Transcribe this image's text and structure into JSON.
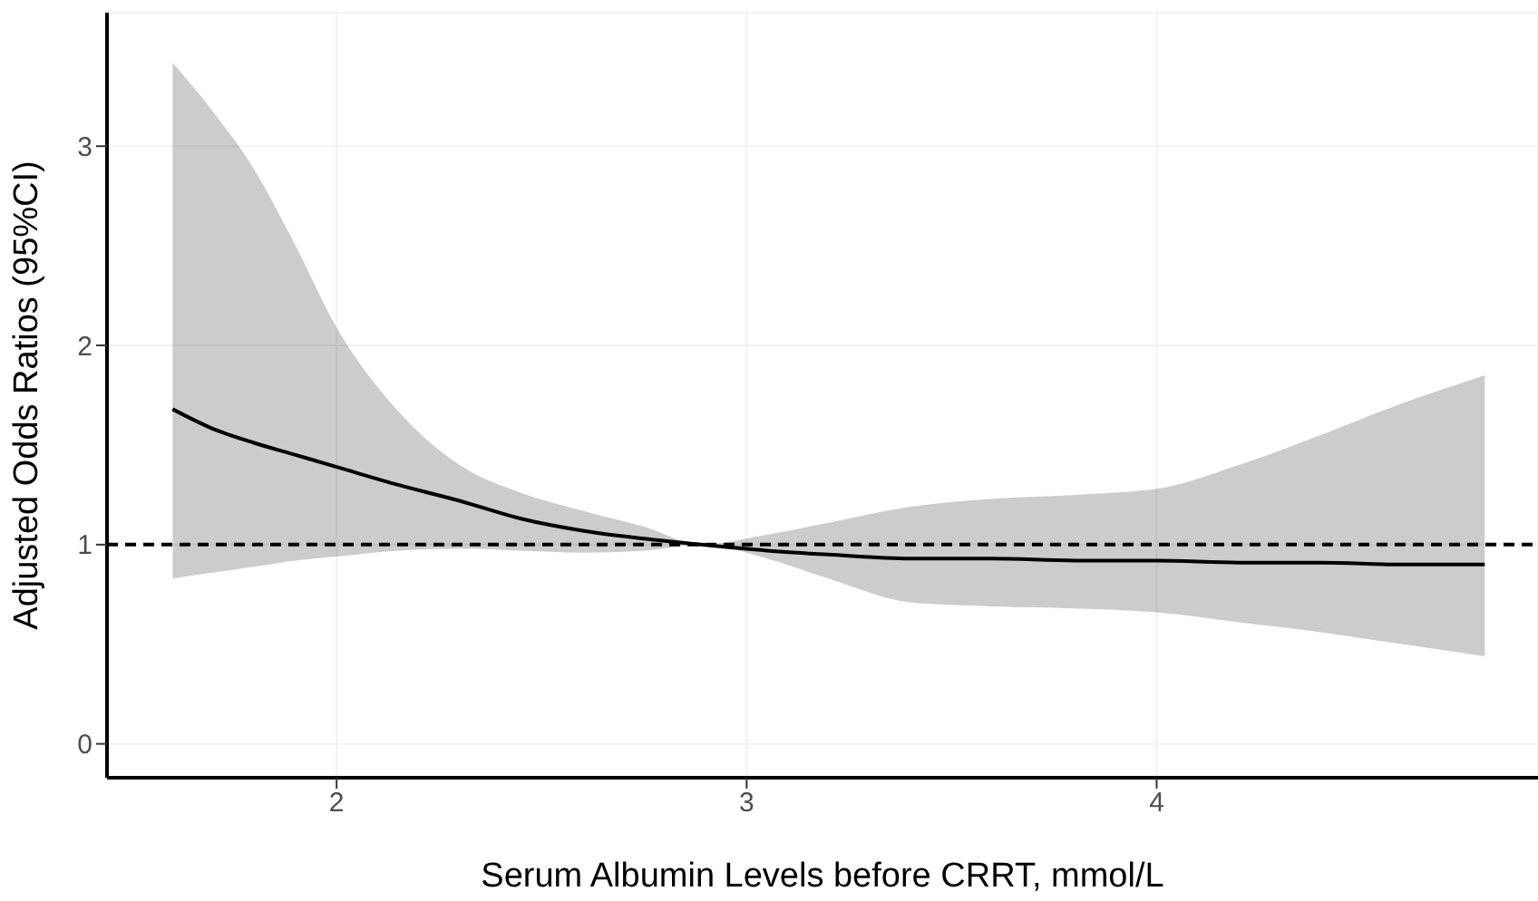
{
  "chart_data": {
    "type": "line",
    "xlabel": "Serum Albumin Levels before CRRT, mmol/L",
    "ylabel": "Adjusted Odds Ratios (95%CI)",
    "x": [
      1.6,
      1.7,
      1.8,
      1.9,
      2.0,
      2.15,
      2.3,
      2.45,
      2.6,
      2.75,
      2.89,
      3.05,
      3.2,
      3.4,
      3.6,
      3.8,
      4.0,
      4.2,
      4.4,
      4.6,
      4.8
    ],
    "series": [
      {
        "color": "#000000",
        "values": [
          1.68,
          1.58,
          1.51,
          1.45,
          1.39,
          1.3,
          1.22,
          1.13,
          1.07,
          1.03,
          1.0,
          0.97,
          0.95,
          0.93,
          0.93,
          0.92,
          0.92,
          0.91,
          0.91,
          0.9,
          0.9
        ],
        "lower": [
          0.83,
          0.86,
          0.89,
          0.92,
          0.94,
          0.97,
          0.98,
          0.97,
          0.96,
          0.97,
          1.0,
          0.93,
          0.83,
          0.71,
          0.69,
          0.68,
          0.66,
          0.61,
          0.56,
          0.5,
          0.44
        ],
        "upper": [
          3.42,
          3.17,
          2.88,
          2.5,
          2.09,
          1.67,
          1.4,
          1.26,
          1.17,
          1.09,
          1.0,
          1.05,
          1.11,
          1.19,
          1.23,
          1.25,
          1.28,
          1.4,
          1.55,
          1.71,
          1.85
        ]
      }
    ],
    "xlim": [
      1.44,
      4.93
    ],
    "xticks": [
      2,
      3,
      4
    ],
    "ylim": [
      -0.17,
      3.67
    ],
    "yticks": [
      0,
      1,
      2,
      3
    ],
    "ref_lines": [
      {
        "axis": "y",
        "value": 1,
        "line_style": "dashed",
        "color": "#000000"
      }
    ],
    "grid": true,
    "marker": "none",
    "line_style": "solid"
  }
}
